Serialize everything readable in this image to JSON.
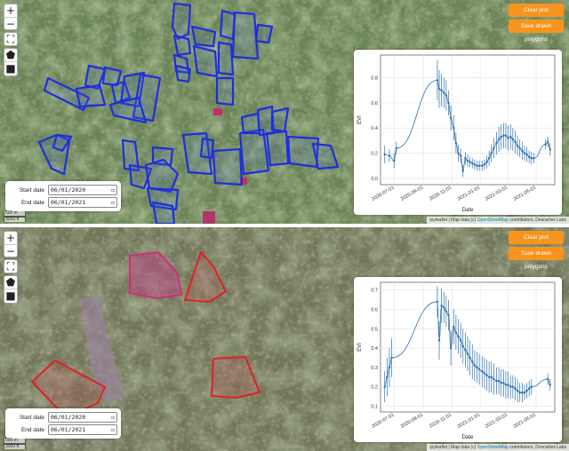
{
  "controls": {
    "zoom_in": "+",
    "zoom_out": "−",
    "fullscreen": "⛶",
    "draw_polygon": "⬟",
    "draw_rectangle": "■"
  },
  "buttons": {
    "clear_plot": "Clear plot",
    "save_polygons": "Save drawn polygons"
  },
  "colors": {
    "accent": "#f7941d",
    "polygon_top": "#1f2fdb",
    "polygon_bottom": "#dd2222",
    "series": "#2c6fae"
  },
  "panels": [
    {
      "start_label": "Start date",
      "start_value": "06/01/2020",
      "end_label": "End date",
      "end_value": "06/01/2021",
      "attribution": {
        "prefix": "ipyleaflet | Map data (c) ",
        "link": "OpenStreetMap",
        "suffix": " contributors, Descartes Labs"
      },
      "scale": {
        "metric": "500 m",
        "imperial": "3000 ft"
      }
    },
    {
      "start_label": "Start date",
      "start_value": "06/01/2020",
      "end_label": "End date",
      "end_value": "06/01/2021",
      "attribution": {
        "prefix": "ipyleaflet | Map data (c) ",
        "link": "OpenStreetMap",
        "suffix": " contributors, Descartes Labs"
      },
      "scale": {
        "metric": "500 m",
        "imperial": "3000 ft"
      }
    }
  ],
  "chart_data": [
    {
      "type": "line",
      "xlabel": "Date",
      "ylabel": "EVI",
      "x_ticks": [
        "2020-07-01",
        "2020-09-01",
        "2020-11-01",
        "2021-01-01",
        "2021-03-01",
        "2021-05-01"
      ],
      "y_ticks": [
        0.0,
        0.2,
        0.4,
        0.6,
        0.8
      ],
      "ylim": [
        -0.05,
        0.98
      ],
      "xlim": [
        "2020-06-01",
        "2021-06-10"
      ],
      "grid": true,
      "points": [
        {
          "x": "2020-06-10",
          "y": 0.19,
          "err": 0.07
        },
        {
          "x": "2020-06-20",
          "y": 0.18,
          "err": 0.05
        },
        {
          "x": "2020-06-30",
          "y": 0.14,
          "err": 0.06
        },
        {
          "x": "2020-07-05",
          "y": 0.24,
          "err": 0.05
        },
        {
          "x": "2020-10-01",
          "y": 0.78,
          "err": 0.16
        },
        {
          "x": "2020-10-05",
          "y": 0.71,
          "err": 0.15
        },
        {
          "x": "2020-10-10",
          "y": 0.7,
          "err": 0.13
        },
        {
          "x": "2020-10-15",
          "y": 0.68,
          "err": 0.12
        },
        {
          "x": "2020-10-20",
          "y": 0.66,
          "err": 0.12
        },
        {
          "x": "2020-10-25",
          "y": 0.6,
          "err": 0.1
        },
        {
          "x": "2020-10-30",
          "y": 0.48,
          "err": 0.1
        },
        {
          "x": "2020-11-05",
          "y": 0.4,
          "err": 0.1
        },
        {
          "x": "2020-11-10",
          "y": 0.28,
          "err": 0.08
        },
        {
          "x": "2020-11-15",
          "y": 0.2,
          "err": 0.07
        },
        {
          "x": "2020-11-20",
          "y": 0.18,
          "err": 0.06
        },
        {
          "x": "2020-11-25",
          "y": 0.06,
          "err": 0.05
        },
        {
          "x": "2020-11-30",
          "y": 0.16,
          "err": 0.05
        },
        {
          "x": "2020-12-05",
          "y": 0.14,
          "err": 0.05
        },
        {
          "x": "2020-12-10",
          "y": 0.13,
          "err": 0.04
        },
        {
          "x": "2020-12-15",
          "y": 0.12,
          "err": 0.04
        },
        {
          "x": "2020-12-20",
          "y": 0.11,
          "err": 0.04
        },
        {
          "x": "2020-12-25",
          "y": 0.1,
          "err": 0.04
        },
        {
          "x": "2020-12-30",
          "y": 0.1,
          "err": 0.04
        },
        {
          "x": "2021-01-05",
          "y": 0.1,
          "err": 0.04
        },
        {
          "x": "2021-01-10",
          "y": 0.11,
          "err": 0.04
        },
        {
          "x": "2021-01-15",
          "y": 0.13,
          "err": 0.05
        },
        {
          "x": "2021-01-20",
          "y": 0.16,
          "err": 0.06
        },
        {
          "x": "2021-01-25",
          "y": 0.2,
          "err": 0.07
        },
        {
          "x": "2021-01-30",
          "y": 0.24,
          "err": 0.08
        },
        {
          "x": "2021-02-05",
          "y": 0.28,
          "err": 0.09
        },
        {
          "x": "2021-02-10",
          "y": 0.31,
          "err": 0.1
        },
        {
          "x": "2021-02-15",
          "y": 0.33,
          "err": 0.1
        },
        {
          "x": "2021-02-20",
          "y": 0.34,
          "err": 0.1
        },
        {
          "x": "2021-02-25",
          "y": 0.34,
          "err": 0.1
        },
        {
          "x": "2021-03-02",
          "y": 0.32,
          "err": 0.1
        },
        {
          "x": "2021-03-07",
          "y": 0.33,
          "err": 0.1
        },
        {
          "x": "2021-03-12",
          "y": 0.31,
          "err": 0.09
        },
        {
          "x": "2021-03-17",
          "y": 0.29,
          "err": 0.09
        },
        {
          "x": "2021-03-22",
          "y": 0.26,
          "err": 0.08
        },
        {
          "x": "2021-03-27",
          "y": 0.24,
          "err": 0.07
        },
        {
          "x": "2021-04-01",
          "y": 0.22,
          "err": 0.07
        },
        {
          "x": "2021-04-06",
          "y": 0.2,
          "err": 0.06
        },
        {
          "x": "2021-04-11",
          "y": 0.19,
          "err": 0.06
        },
        {
          "x": "2021-04-16",
          "y": 0.17,
          "err": 0.05
        },
        {
          "x": "2021-04-21",
          "y": 0.16,
          "err": 0.05
        },
        {
          "x": "2021-04-26",
          "y": 0.16,
          "err": 0.04
        },
        {
          "x": "2021-05-21",
          "y": 0.27,
          "err": 0.04
        },
        {
          "x": "2021-05-26",
          "y": 0.29,
          "err": 0.04
        },
        {
          "x": "2021-05-31",
          "y": 0.23,
          "err": 0.05
        }
      ]
    },
    {
      "type": "line",
      "xlabel": "Date",
      "ylabel": "EVI",
      "x_ticks": [
        "2020-07-01",
        "2020-09-01",
        "2020-11-01",
        "2021-01-01",
        "2021-03-01",
        "2021-05-01"
      ],
      "y_ticks": [
        0.1,
        0.2,
        0.3,
        0.4,
        0.5,
        0.6,
        0.7
      ],
      "ylim": [
        0.07,
        0.74
      ],
      "xlim": [
        "2020-06-01",
        "2021-06-10"
      ],
      "grid": true,
      "points": [
        {
          "x": "2020-06-10",
          "y": 0.2,
          "err": 0.08
        },
        {
          "x": "2020-06-15",
          "y": 0.25,
          "err": 0.1
        },
        {
          "x": "2020-06-20",
          "y": 0.3,
          "err": 0.1
        },
        {
          "x": "2020-06-25",
          "y": 0.35,
          "err": 0.1
        },
        {
          "x": "2020-10-01",
          "y": 0.64,
          "err": 0.08
        },
        {
          "x": "2020-10-05",
          "y": 0.44,
          "err": 0.1
        },
        {
          "x": "2020-10-10",
          "y": 0.62,
          "err": 0.09
        },
        {
          "x": "2020-10-15",
          "y": 0.61,
          "err": 0.08
        },
        {
          "x": "2020-10-20",
          "y": 0.59,
          "err": 0.08
        },
        {
          "x": "2020-10-25",
          "y": 0.57,
          "err": 0.08
        },
        {
          "x": "2020-10-30",
          "y": 0.4,
          "err": 0.09
        },
        {
          "x": "2020-11-05",
          "y": 0.51,
          "err": 0.09
        },
        {
          "x": "2020-11-10",
          "y": 0.48,
          "err": 0.09
        },
        {
          "x": "2020-11-15",
          "y": 0.46,
          "err": 0.09
        },
        {
          "x": "2020-11-20",
          "y": 0.44,
          "err": 0.09
        },
        {
          "x": "2020-11-25",
          "y": 0.41,
          "err": 0.09
        },
        {
          "x": "2020-11-30",
          "y": 0.39,
          "err": 0.09
        },
        {
          "x": "2020-12-05",
          "y": 0.37,
          "err": 0.09
        },
        {
          "x": "2020-12-10",
          "y": 0.35,
          "err": 0.09
        },
        {
          "x": "2020-12-15",
          "y": 0.33,
          "err": 0.09
        },
        {
          "x": "2020-12-20",
          "y": 0.31,
          "err": 0.08
        },
        {
          "x": "2020-12-25",
          "y": 0.3,
          "err": 0.08
        },
        {
          "x": "2020-12-30",
          "y": 0.29,
          "err": 0.08
        },
        {
          "x": "2021-01-05",
          "y": 0.28,
          "err": 0.08
        },
        {
          "x": "2021-01-10",
          "y": 0.27,
          "err": 0.08
        },
        {
          "x": "2021-01-15",
          "y": 0.26,
          "err": 0.08
        },
        {
          "x": "2021-01-20",
          "y": 0.25,
          "err": 0.08
        },
        {
          "x": "2021-01-25",
          "y": 0.25,
          "err": 0.08
        },
        {
          "x": "2021-01-30",
          "y": 0.24,
          "err": 0.08
        },
        {
          "x": "2021-02-05",
          "y": 0.23,
          "err": 0.07
        },
        {
          "x": "2021-02-10",
          "y": 0.23,
          "err": 0.07
        },
        {
          "x": "2021-02-15",
          "y": 0.22,
          "err": 0.07
        },
        {
          "x": "2021-02-20",
          "y": 0.22,
          "err": 0.07
        },
        {
          "x": "2021-02-25",
          "y": 0.21,
          "err": 0.07
        },
        {
          "x": "2021-03-02",
          "y": 0.21,
          "err": 0.07
        },
        {
          "x": "2021-03-07",
          "y": 0.2,
          "err": 0.06
        },
        {
          "x": "2021-03-12",
          "y": 0.2,
          "err": 0.06
        },
        {
          "x": "2021-03-17",
          "y": 0.19,
          "err": 0.06
        },
        {
          "x": "2021-03-22",
          "y": 0.18,
          "err": 0.06
        },
        {
          "x": "2021-03-27",
          "y": 0.17,
          "err": 0.05
        },
        {
          "x": "2021-04-01",
          "y": 0.17,
          "err": 0.05
        },
        {
          "x": "2021-04-06",
          "y": 0.17,
          "err": 0.04
        },
        {
          "x": "2021-04-11",
          "y": 0.18,
          "err": 0.04
        },
        {
          "x": "2021-04-16",
          "y": 0.19,
          "err": 0.04
        },
        {
          "x": "2021-04-21",
          "y": 0.2,
          "err": 0.04
        },
        {
          "x": "2021-05-26",
          "y": 0.24,
          "err": 0.03
        },
        {
          "x": "2021-05-31",
          "y": 0.21,
          "err": 0.03
        }
      ]
    }
  ]
}
